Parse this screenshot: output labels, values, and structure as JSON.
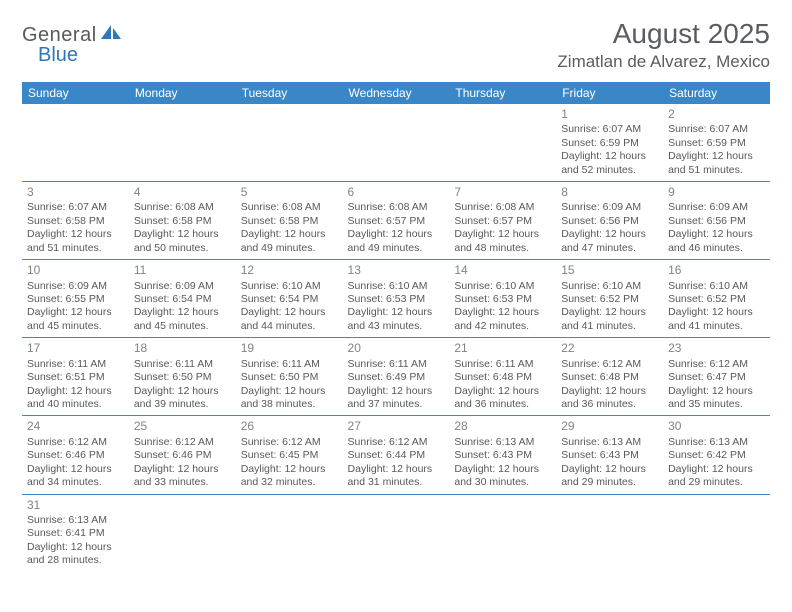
{
  "logo": {
    "general": "General",
    "blue": "Blue"
  },
  "title": "August 2025",
  "location": "Zimatlan de Alvarez, Mexico",
  "colors": {
    "header_bg": "#3a87c8",
    "header_text": "#ffffff",
    "cell_border": "#3a87c8",
    "text": "#56595c",
    "daynum": "#7e8487",
    "logo_gray": "#555a5e",
    "logo_blue": "#2e77b8",
    "title_color": "#595d61",
    "page_bg": "#ffffff"
  },
  "weekdays": [
    "Sunday",
    "Monday",
    "Tuesday",
    "Wednesday",
    "Thursday",
    "Friday",
    "Saturday"
  ],
  "weeks": [
    [
      null,
      null,
      null,
      null,
      null,
      {
        "d": "1",
        "sr": "6:07 AM",
        "ss": "6:59 PM",
        "dl": "12 hours and 52 minutes."
      },
      {
        "d": "2",
        "sr": "6:07 AM",
        "ss": "6:59 PM",
        "dl": "12 hours and 51 minutes."
      }
    ],
    [
      {
        "d": "3",
        "sr": "6:07 AM",
        "ss": "6:58 PM",
        "dl": "12 hours and 51 minutes."
      },
      {
        "d": "4",
        "sr": "6:08 AM",
        "ss": "6:58 PM",
        "dl": "12 hours and 50 minutes."
      },
      {
        "d": "5",
        "sr": "6:08 AM",
        "ss": "6:58 PM",
        "dl": "12 hours and 49 minutes."
      },
      {
        "d": "6",
        "sr": "6:08 AM",
        "ss": "6:57 PM",
        "dl": "12 hours and 49 minutes."
      },
      {
        "d": "7",
        "sr": "6:08 AM",
        "ss": "6:57 PM",
        "dl": "12 hours and 48 minutes."
      },
      {
        "d": "8",
        "sr": "6:09 AM",
        "ss": "6:56 PM",
        "dl": "12 hours and 47 minutes."
      },
      {
        "d": "9",
        "sr": "6:09 AM",
        "ss": "6:56 PM",
        "dl": "12 hours and 46 minutes."
      }
    ],
    [
      {
        "d": "10",
        "sr": "6:09 AM",
        "ss": "6:55 PM",
        "dl": "12 hours and 45 minutes."
      },
      {
        "d": "11",
        "sr": "6:09 AM",
        "ss": "6:54 PM",
        "dl": "12 hours and 45 minutes."
      },
      {
        "d": "12",
        "sr": "6:10 AM",
        "ss": "6:54 PM",
        "dl": "12 hours and 44 minutes."
      },
      {
        "d": "13",
        "sr": "6:10 AM",
        "ss": "6:53 PM",
        "dl": "12 hours and 43 minutes."
      },
      {
        "d": "14",
        "sr": "6:10 AM",
        "ss": "6:53 PM",
        "dl": "12 hours and 42 minutes."
      },
      {
        "d": "15",
        "sr": "6:10 AM",
        "ss": "6:52 PM",
        "dl": "12 hours and 41 minutes."
      },
      {
        "d": "16",
        "sr": "6:10 AM",
        "ss": "6:52 PM",
        "dl": "12 hours and 41 minutes."
      }
    ],
    [
      {
        "d": "17",
        "sr": "6:11 AM",
        "ss": "6:51 PM",
        "dl": "12 hours and 40 minutes."
      },
      {
        "d": "18",
        "sr": "6:11 AM",
        "ss": "6:50 PM",
        "dl": "12 hours and 39 minutes."
      },
      {
        "d": "19",
        "sr": "6:11 AM",
        "ss": "6:50 PM",
        "dl": "12 hours and 38 minutes."
      },
      {
        "d": "20",
        "sr": "6:11 AM",
        "ss": "6:49 PM",
        "dl": "12 hours and 37 minutes."
      },
      {
        "d": "21",
        "sr": "6:11 AM",
        "ss": "6:48 PM",
        "dl": "12 hours and 36 minutes."
      },
      {
        "d": "22",
        "sr": "6:12 AM",
        "ss": "6:48 PM",
        "dl": "12 hours and 36 minutes."
      },
      {
        "d": "23",
        "sr": "6:12 AM",
        "ss": "6:47 PM",
        "dl": "12 hours and 35 minutes."
      }
    ],
    [
      {
        "d": "24",
        "sr": "6:12 AM",
        "ss": "6:46 PM",
        "dl": "12 hours and 34 minutes."
      },
      {
        "d": "25",
        "sr": "6:12 AM",
        "ss": "6:46 PM",
        "dl": "12 hours and 33 minutes."
      },
      {
        "d": "26",
        "sr": "6:12 AM",
        "ss": "6:45 PM",
        "dl": "12 hours and 32 minutes."
      },
      {
        "d": "27",
        "sr": "6:12 AM",
        "ss": "6:44 PM",
        "dl": "12 hours and 31 minutes."
      },
      {
        "d": "28",
        "sr": "6:13 AM",
        "ss": "6:43 PM",
        "dl": "12 hours and 30 minutes."
      },
      {
        "d": "29",
        "sr": "6:13 AM",
        "ss": "6:43 PM",
        "dl": "12 hours and 29 minutes."
      },
      {
        "d": "30",
        "sr": "6:13 AM",
        "ss": "6:42 PM",
        "dl": "12 hours and 29 minutes."
      }
    ],
    [
      {
        "d": "31",
        "sr": "6:13 AM",
        "ss": "6:41 PM",
        "dl": "12 hours and 28 minutes."
      },
      null,
      null,
      null,
      null,
      null,
      null
    ]
  ],
  "labels": {
    "sunrise": "Sunrise:",
    "sunset": "Sunset:",
    "daylight": "Daylight:"
  }
}
